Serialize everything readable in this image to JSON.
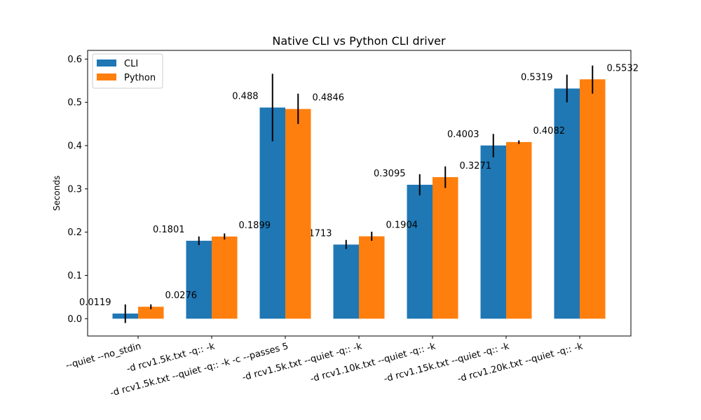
{
  "chart_data": {
    "type": "bar",
    "title": "Native CLI vs Python CLI driver",
    "xlabel": "",
    "ylabel": "Seconds",
    "ylim": [
      -0.04,
      0.62
    ],
    "yticks": [
      "0.0",
      "0.1",
      "0.2",
      "0.3",
      "0.4",
      "0.5",
      "0.6"
    ],
    "ytick_values": [
      0.0,
      0.1,
      0.2,
      0.3,
      0.4,
      0.5,
      0.6
    ],
    "categories": [
      "--quiet --no_stdin",
      "-d rcv1.5k.txt -q:: -k",
      "-d rcv1.5k.txt --quiet -q:: -k -c --passes 5",
      "-d rcv1.5k.txt --quiet -q:: -k",
      "-d rcv1.10k.txt --quiet -q:: -k",
      "-d rcv1.15k.txt --quiet -q:: -k",
      "-d rcv1.20k.txt --quiet -q:: -k"
    ],
    "series": [
      {
        "name": "CLI",
        "color": "#1f77b4",
        "values": [
          0.0119,
          0.1801,
          0.488,
          0.1713,
          0.3095,
          0.4003,
          0.5319
        ],
        "labels": [
          "0.0119",
          "0.1801",
          "0.488",
          "0.1713",
          "0.3095",
          "0.4003",
          "0.5319"
        ],
        "err_low": [
          -0.01,
          0.17,
          0.41,
          0.161,
          0.285,
          0.373,
          0.5
        ],
        "err_high": [
          0.033,
          0.19,
          0.566,
          0.182,
          0.334,
          0.427,
          0.564
        ]
      },
      {
        "name": "Python",
        "color": "#ff7f0e",
        "values": [
          0.0276,
          0.1899,
          0.4846,
          0.1904,
          0.3271,
          0.4082,
          0.5532
        ],
        "labels": [
          "0.0276",
          "0.1899",
          "0.4846",
          "0.1904",
          "0.3271",
          "0.4082",
          "0.5532"
        ],
        "err_low": [
          0.022,
          0.183,
          0.45,
          0.18,
          0.302,
          0.404,
          0.52
        ],
        "err_high": [
          0.033,
          0.197,
          0.52,
          0.201,
          0.352,
          0.412,
          0.585
        ]
      }
    ],
    "legend": {
      "position": "top-left",
      "entries": [
        "CLI",
        "Python"
      ]
    },
    "grid": false
  }
}
